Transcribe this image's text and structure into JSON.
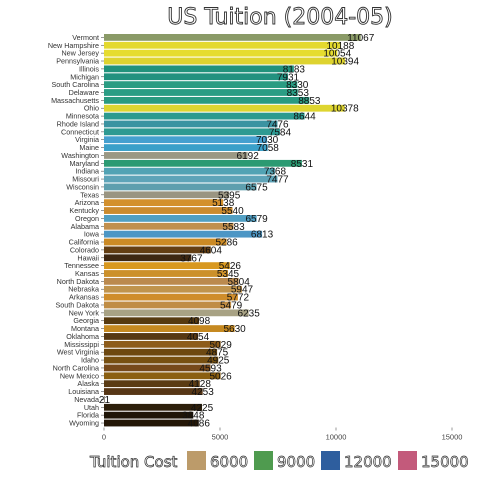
{
  "chart_data": {
    "type": "bar",
    "orientation": "horizontal",
    "title": "US Tuition (2004-05)",
    "xlim": [
      0,
      15000
    ],
    "xticks": [
      0,
      5000,
      10000,
      15000
    ],
    "grid": false,
    "categories": [
      "Vermont",
      "New Hampshire",
      "New Jersey",
      "Pennsylvania",
      "Illinois",
      "Michigan",
      "South Carolina",
      "Delaware",
      "Massachusetts",
      "Ohio",
      "Minnesota",
      "Rhode Island",
      "Connecticut",
      "Virginia",
      "Maine",
      "Washington",
      "Maryland",
      "Indiana",
      "Missouri",
      "Wisconsin",
      "Texas",
      "Arizona",
      "Kentucky",
      "Oregon",
      "Alabama",
      "Iowa",
      "California",
      "Colorado",
      "Hawaii",
      "Tennessee",
      "Kansas",
      "North Dakota",
      "Nebraska",
      "Arkansas",
      "South Dakota",
      "New York",
      "Georgia",
      "Montana",
      "Oklahoma",
      "Mississippi",
      "West Virginia",
      "Idaho",
      "North Carolina",
      "New Mexico",
      "Alaska",
      "Louisiana",
      "Nevada",
      "Utah",
      "Florida",
      "Wyoming"
    ],
    "values": [
      11067,
      10188,
      10054,
      10394,
      8183,
      7931,
      8330,
      8353,
      8853,
      10378,
      8644,
      7476,
      7584,
      7030,
      7058,
      6192,
      8531,
      7368,
      7477,
      6575,
      5395,
      5138,
      5540,
      6579,
      5583,
      6813,
      5286,
      4604,
      3767,
      5426,
      5345,
      5804,
      5947,
      5772,
      5479,
      6235,
      4098,
      5630,
      4054,
      5029,
      4875,
      4925,
      4593,
      5026,
      4128,
      4253,
      21,
      4225,
      3848,
      4086
    ],
    "colors": [
      "#8a9a67",
      "#e4d92e",
      "#e6dc2f",
      "#ded330",
      "#21927c",
      "#22917f",
      "#2a9c82",
      "#2a9d84",
      "#2a9a80",
      "#ded530",
      "#2c9a8f",
      "#3b93a1",
      "#2e9a92",
      "#45a0cf",
      "#3aa0c9",
      "#9a9884",
      "#2b9a72",
      "#52a3b4",
      "#5ea4b8",
      "#5e9fae",
      "#9a9582",
      "#d3902c",
      "#cc8b2e",
      "#519fc3",
      "#c18f4e",
      "#4c96c5",
      "#cb8a25",
      "#633e13",
      "#3d2712",
      "#d8981f",
      "#cc902a",
      "#bb8a4e",
      "#c0944d",
      "#cf8d2b",
      "#c08d44",
      "#a8a284",
      "#573a10",
      "#c68920",
      "#573812",
      "#8d5c1a",
      "#6d4810",
      "#775011",
      "#76491a",
      "#8b5f11",
      "#5a3b14",
      "#573716",
      "#2d1f0b",
      "#2d1f0b",
      "#1f1507",
      "#241707"
    ],
    "legend": {
      "title": "Tuition Cost",
      "position": "bottom",
      "entries": [
        {
          "label": "6000",
          "color": "#bc9b6a"
        },
        {
          "label": "9000",
          "color": "#4f9b4f"
        },
        {
          "label": "12000",
          "color": "#2e5e9e"
        },
        {
          "label": "15000",
          "color": "#c35a7b"
        }
      ]
    }
  }
}
